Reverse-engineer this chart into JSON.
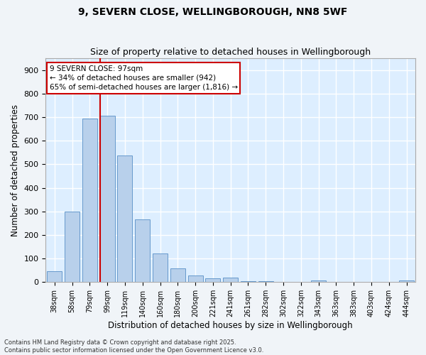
{
  "title_line1": "9, SEVERN CLOSE, WELLINGBOROUGH, NN8 5WF",
  "title_line2": "Size of property relative to detached houses in Wellingborough",
  "xlabel": "Distribution of detached houses by size in Wellingborough",
  "ylabel": "Number of detached properties",
  "bar_labels": [
    "38sqm",
    "58sqm",
    "79sqm",
    "99sqm",
    "119sqm",
    "140sqm",
    "160sqm",
    "180sqm",
    "200sqm",
    "221sqm",
    "241sqm",
    "261sqm",
    "282sqm",
    "302sqm",
    "322sqm",
    "343sqm",
    "363sqm",
    "383sqm",
    "403sqm",
    "424sqm",
    "444sqm"
  ],
  "bar_values": [
    45,
    300,
    693,
    706,
    537,
    265,
    123,
    57,
    27,
    17,
    20,
    4,
    5,
    2,
    0,
    7,
    1,
    0,
    0,
    0,
    8
  ],
  "bar_color": "#b8d0eb",
  "bar_edge_color": "#6699cc",
  "background_color": "#ddeeff",
  "grid_color": "#ffffff",
  "fig_background": "#f0f4f8",
  "vline_color": "#cc0000",
  "vline_x_index": 3,
  "annotation_text": "9 SEVERN CLOSE: 97sqm\n← 34% of detached houses are smaller (942)\n65% of semi-detached houses are larger (1,816) →",
  "annotation_box_color": "#ffffff",
  "annotation_box_edge": "#cc0000",
  "footer_text": "Contains HM Land Registry data © Crown copyright and database right 2025.\nContains public sector information licensed under the Open Government Licence v3.0.",
  "ylim": [
    0,
    950
  ],
  "yticks": [
    0,
    100,
    200,
    300,
    400,
    500,
    600,
    700,
    800,
    900
  ]
}
